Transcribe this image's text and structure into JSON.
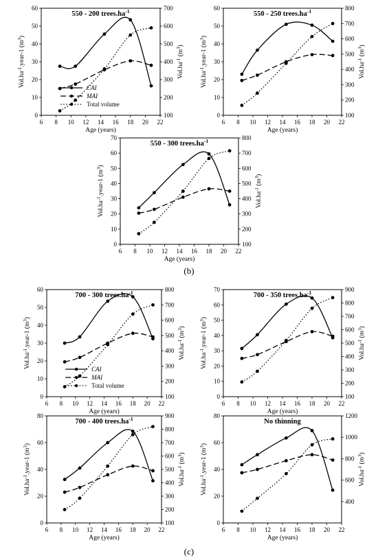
{
  "panel_labels": {
    "b": "(b)",
    "c": "(c)"
  },
  "colors": {
    "lines": "#000000",
    "background": "#ffffff"
  },
  "chart_data": [
    {
      "type": "line",
      "title": "550 - 200 trees.ha-1",
      "xlabel": "Age (years)",
      "ylabel": "Vol.ha-1.year-1 (m3)",
      "y2label": "Vol.ha-1 (m3)",
      "xlim": [
        6,
        22
      ],
      "ylim": [
        0,
        60
      ],
      "y2lim": [
        100,
        700
      ],
      "xticks": [
        6,
        8,
        10,
        12,
        14,
        16,
        18,
        20,
        22
      ],
      "yticks": [
        0,
        10,
        20,
        30,
        40,
        50,
        60
      ],
      "y2ticks": [
        100,
        200,
        300,
        400,
        500,
        600,
        700
      ],
      "grid": false,
      "legend": {
        "position": "bottom-left",
        "entries": [
          "CAI",
          "MAI",
          "Total volume"
        ]
      },
      "series": [
        {
          "name": "CAI",
          "axis": "left",
          "style": "solid",
          "x": [
            8.5,
            10.6,
            14.5,
            18,
            20.8
          ],
          "values": [
            27.5,
            27.5,
            45.5,
            53.5,
            16.5
          ]
        },
        {
          "name": "MAI",
          "axis": "left",
          "style": "dashed",
          "x": [
            8.5,
            10.6,
            14.5,
            18,
            20.8
          ],
          "values": [
            15,
            17.5,
            25.5,
            30.5,
            28
          ]
        },
        {
          "name": "Total volume",
          "axis": "right",
          "style": "dotted",
          "x": [
            8.5,
            10.6,
            14.5,
            18,
            20.8
          ],
          "values": [
            125,
            185,
            360,
            550,
            590
          ]
        }
      ]
    },
    {
      "type": "line",
      "title": "550 - 250 trees.ha-1",
      "xlabel": "Age (years)",
      "ylabel": "Vol.ha-1.year-1 (m3)",
      "y2label": "Vol.ha-1 (m3)",
      "xlim": [
        6,
        22
      ],
      "ylim": [
        0,
        60
      ],
      "y2lim": [
        100,
        800
      ],
      "xticks": [
        6,
        8,
        10,
        12,
        14,
        16,
        18,
        20,
        22
      ],
      "yticks": [
        0,
        10,
        20,
        30,
        40,
        50,
        60
      ],
      "y2ticks": [
        100,
        200,
        300,
        400,
        500,
        600,
        700,
        800
      ],
      "grid": false,
      "series": [
        {
          "name": "CAI",
          "axis": "left",
          "style": "solid",
          "x": [
            8.5,
            10.6,
            14.5,
            18,
            20.8
          ],
          "values": [
            23,
            36.5,
            51,
            50.5,
            41.5
          ]
        },
        {
          "name": "MAI",
          "axis": "left",
          "style": "dashed",
          "x": [
            8.5,
            10.6,
            14.5,
            18,
            20.8
          ],
          "values": [
            19.5,
            22.5,
            30,
            34,
            33.5
          ]
        },
        {
          "name": "Total volume",
          "axis": "right",
          "style": "dotted",
          "x": [
            8.5,
            10.6,
            14.5,
            18,
            20.8
          ],
          "values": [
            165,
            245,
            440,
            615,
            700
          ]
        }
      ]
    },
    {
      "type": "line",
      "title": "550 - 300 trees.ha-1",
      "xlabel": "Age (years)",
      "ylabel": "Vol.ha-1.year-1 (m3)",
      "y2label": "Vol.ha-1 (m3)",
      "xlim": [
        6,
        22
      ],
      "ylim": [
        0,
        70
      ],
      "y2lim": [
        100,
        800
      ],
      "xticks": [
        6,
        8,
        10,
        12,
        14,
        16,
        18,
        20,
        22
      ],
      "yticks": [
        0,
        10,
        20,
        30,
        40,
        50,
        60,
        70
      ],
      "y2ticks": [
        100,
        200,
        300,
        400,
        500,
        600,
        700,
        800
      ],
      "grid": false,
      "series": [
        {
          "name": "CAI",
          "axis": "left",
          "style": "solid",
          "x": [
            8.5,
            10.6,
            14.5,
            18,
            20.8
          ],
          "values": [
            24,
            34,
            52.5,
            59.5,
            26
          ]
        },
        {
          "name": "MAI",
          "axis": "left",
          "style": "dashed",
          "x": [
            8.5,
            10.6,
            14.5,
            18,
            20.8
          ],
          "values": [
            20.5,
            23,
            31,
            36.5,
            35
          ]
        },
        {
          "name": "Total volume",
          "axis": "right",
          "style": "dotted",
          "x": [
            8.5,
            10.6,
            14.5,
            18,
            20.8
          ],
          "values": [
            170,
            245,
            450,
            665,
            715
          ]
        }
      ]
    },
    {
      "type": "line",
      "title": "700 - 300 trees.ha-1",
      "xlabel": "Age (years)",
      "ylabel": "Vol.ha-1.year-1 (m3)",
      "y2label": "Vol.ha-1 (m3)",
      "xlim": [
        6,
        22
      ],
      "ylim": [
        0,
        60
      ],
      "y2lim": [
        100,
        800
      ],
      "xticks": [
        6,
        8,
        10,
        12,
        14,
        16,
        18,
        20,
        22
      ],
      "yticks": [
        0,
        10,
        20,
        30,
        40,
        50,
        60
      ],
      "y2ticks": [
        100,
        200,
        300,
        400,
        500,
        600,
        700,
        800
      ],
      "grid": false,
      "legend": {
        "position": "bottom-left",
        "entries": [
          "CAI",
          "MAI",
          "Total volume"
        ]
      },
      "series": [
        {
          "name": "CAI",
          "axis": "left",
          "style": "solid",
          "x": [
            8.5,
            10.6,
            14.5,
            18,
            20.8
          ],
          "values": [
            30,
            33.5,
            53.5,
            56,
            32.5
          ]
        },
        {
          "name": "MAI",
          "axis": "left",
          "style": "dashed",
          "x": [
            8.5,
            10.6,
            14.5,
            18,
            20.8
          ],
          "values": [
            19.5,
            22,
            30,
            35.5,
            33.5
          ]
        },
        {
          "name": "Total volume",
          "axis": "right",
          "style": "dotted",
          "x": [
            8.5,
            10.6,
            14.5,
            18,
            20.8
          ],
          "values": [
            165,
            235,
            440,
            640,
            700
          ]
        }
      ]
    },
    {
      "type": "line",
      "title": "700 - 350 trees.ha-1",
      "xlabel": "Age (years)",
      "ylabel": "Vol.ha-1.year-1 (m3)",
      "y2label": "Vol.ha-1 (m3)",
      "xlim": [
        6,
        22
      ],
      "ylim": [
        0,
        70
      ],
      "y2lim": [
        100,
        900
      ],
      "xticks": [
        6,
        8,
        10,
        12,
        14,
        16,
        18,
        20,
        22
      ],
      "yticks": [
        0,
        10,
        20,
        30,
        40,
        50,
        60,
        70
      ],
      "y2ticks": [
        100,
        200,
        300,
        400,
        500,
        600,
        700,
        800,
        900
      ],
      "grid": false,
      "series": [
        {
          "name": "CAI",
          "axis": "left",
          "style": "solid",
          "x": [
            8.5,
            10.6,
            14.5,
            18,
            20.8
          ],
          "values": [
            31.5,
            40.5,
            60.5,
            64.5,
            38.5
          ]
        },
        {
          "name": "MAI",
          "axis": "left",
          "style": "dashed",
          "x": [
            8.5,
            10.6,
            14.5,
            18,
            20.8
          ],
          "values": [
            25,
            27.5,
            36,
            42.5,
            39.5
          ]
        },
        {
          "name": "Total volume",
          "axis": "right",
          "style": "dotted",
          "x": [
            8.5,
            10.6,
            14.5,
            18,
            20.8
          ],
          "values": [
            210,
            290,
            520,
            760,
            840
          ]
        }
      ]
    },
    {
      "type": "line",
      "title": "700 - 400 trees.ha-1",
      "xlabel": "Age (years)",
      "ylabel": "Vol.ha-1.year-1 (m3)",
      "y2label": "Vol.ha-1 (m3)",
      "xlim": [
        6,
        22
      ],
      "ylim": [
        0,
        80
      ],
      "y2lim": [
        100,
        900
      ],
      "xticks": [
        6,
        8,
        10,
        12,
        14,
        16,
        18,
        20,
        22
      ],
      "yticks": [
        0,
        20,
        40,
        60,
        80
      ],
      "y2ticks": [
        100,
        200,
        300,
        400,
        500,
        600,
        700,
        800,
        900
      ],
      "grid": false,
      "series": [
        {
          "name": "CAI",
          "axis": "left",
          "style": "solid",
          "x": [
            8.5,
            10.6,
            14.5,
            18,
            20.8
          ],
          "values": [
            32.5,
            41,
            60,
            68.5,
            31.5
          ]
        },
        {
          "name": "MAI",
          "axis": "left",
          "style": "dashed",
          "x": [
            8.5,
            10.6,
            14.5,
            18,
            20.8
          ],
          "values": [
            23,
            26.5,
            36,
            42.5,
            39
          ]
        },
        {
          "name": "Total volume",
          "axis": "right",
          "style": "dotted",
          "x": [
            8.5,
            10.6,
            14.5,
            18,
            20.8
          ],
          "values": [
            200,
            285,
            525,
            760,
            820
          ]
        }
      ]
    },
    {
      "type": "line",
      "title": "No thinning",
      "xlabel": "Age (years)",
      "ylabel": "Vol.ha-1.year-1 (m3)",
      "y2label": "Vol.ha-1 (m3)",
      "xlim": [
        6,
        22
      ],
      "ylim": [
        0,
        80
      ],
      "y2lim": [
        200,
        1200
      ],
      "xticks": [
        6,
        8,
        10,
        12,
        14,
        16,
        18,
        20,
        22
      ],
      "yticks": [
        0,
        20,
        40,
        60,
        80
      ],
      "y2ticks": [
        400,
        600,
        800,
        1000,
        1200
      ],
      "grid": false,
      "series": [
        {
          "name": "CAI",
          "axis": "left",
          "style": "solid",
          "x": [
            8.5,
            10.6,
            14.5,
            18,
            20.8
          ],
          "values": [
            43.5,
            51,
            63.5,
            69,
            24.5
          ]
        },
        {
          "name": "MAI",
          "axis": "left",
          "style": "dashed",
          "x": [
            8.5,
            10.6,
            14.5,
            18,
            20.8
          ],
          "values": [
            37.5,
            40,
            46.5,
            51,
            47
          ]
        },
        {
          "name": "Total volume",
          "axis": "right",
          "style": "dotted",
          "x": [
            8.5,
            10.6,
            14.5,
            18,
            20.8
          ],
          "values": [
            310,
            430,
            660,
            930,
            985
          ]
        }
      ]
    }
  ]
}
